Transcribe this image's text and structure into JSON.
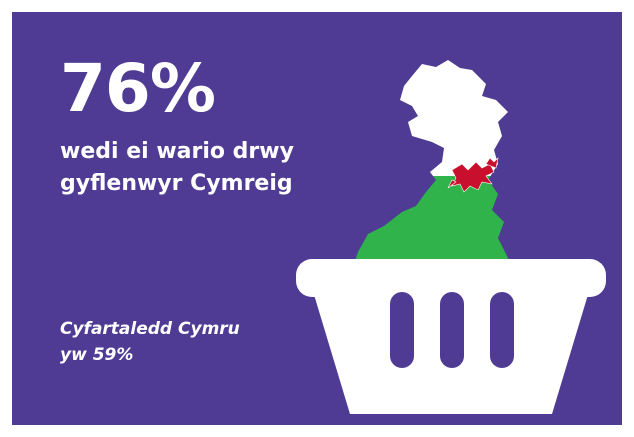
{
  "stat": {
    "percent": "76%",
    "caption_line1": "wedi ei wario drwy",
    "caption_line2": "gyflenwyr Cymreig"
  },
  "average": {
    "line1": "Cyfartaledd Cymru",
    "line2": "yw 59%"
  },
  "colors": {
    "background": "#4f3b94",
    "text": "#ffffff",
    "flag_green": "#2fb34a",
    "flag_white": "#ffffff",
    "dragon_red": "#c8102e"
  },
  "icons": {
    "map": "wales-map-icon",
    "dragon": "welsh-dragon-icon",
    "basket": "shopping-basket-icon"
  }
}
